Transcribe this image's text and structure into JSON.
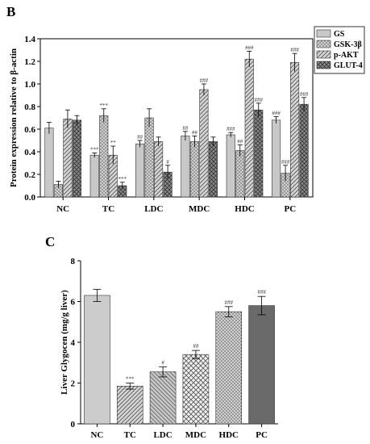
{
  "panels": {
    "b_label": "B",
    "c_label": "C"
  },
  "chart_data": [
    {
      "type": "bar",
      "title": "",
      "xlabel": "",
      "ylabel": "Protein expression relative to β-actin",
      "ylim": [
        0,
        1.4
      ],
      "yticks": [
        "0.0",
        "0.2",
        "0.4",
        "0.6",
        "0.8",
        "1.0",
        "1.2",
        "1.4"
      ],
      "categories": [
        "NC",
        "TC",
        "LDC",
        "MDC",
        "HDC",
        "PC"
      ],
      "legend_position": "top-right",
      "series": [
        {
          "name": "GS",
          "color": "#c8c8c8",
          "pattern": "solid",
          "values": [
            0.61,
            0.37,
            0.47,
            0.54,
            0.55,
            0.68
          ],
          "errors": [
            0.05,
            0.02,
            0.03,
            0.04,
            0.02,
            0.03
          ],
          "annotations": [
            "",
            "***",
            "##",
            "##",
            "###",
            "###"
          ]
        },
        {
          "name": "GSK-3β",
          "color": "#a8a8a8",
          "pattern": "dots",
          "values": [
            0.11,
            0.72,
            0.7,
            0.49,
            0.41,
            0.21
          ],
          "errors": [
            0.03,
            0.06,
            0.08,
            0.05,
            0.05,
            0.07
          ],
          "annotations": [
            "",
            "***",
            "",
            "##",
            "##",
            "###"
          ]
        },
        {
          "name": "p-AKT",
          "color": "#bdbdbd",
          "pattern": "diag",
          "values": [
            0.69,
            0.37,
            0.49,
            0.95,
            1.22,
            1.19
          ],
          "errors": [
            0.08,
            0.08,
            0.04,
            0.05,
            0.07,
            0.08
          ],
          "annotations": [
            "",
            "**",
            "",
            "###",
            "###",
            "###"
          ]
        },
        {
          "name": "GLUT-4",
          "color": "#777777",
          "pattern": "cross",
          "values": [
            0.68,
            0.1,
            0.22,
            0.49,
            0.77,
            0.82
          ],
          "errors": [
            0.04,
            0.03,
            0.06,
            0.04,
            0.06,
            0.06
          ],
          "annotations": [
            "",
            "***",
            "#",
            "",
            "###",
            "###"
          ]
        }
      ]
    },
    {
      "type": "bar",
      "title": "",
      "xlabel": "",
      "ylabel": "Liver Glygocen (mg/g liver)",
      "ylim": [
        0,
        8
      ],
      "yticks": [
        "0",
        "2",
        "4",
        "6",
        "8"
      ],
      "categories": [
        "NC",
        "TC",
        "LDC",
        "MDC",
        "HDC",
        "PC"
      ],
      "values": [
        6.3,
        1.85,
        2.55,
        3.4,
        5.5,
        5.8
      ],
      "errors": [
        0.3,
        0.15,
        0.25,
        0.2,
        0.25,
        0.45
      ],
      "annotations": [
        "",
        "***",
        "#",
        "##",
        "###",
        "###"
      ],
      "colors": [
        "#cccccc",
        "#a0a0a0",
        "#c4c4c4",
        "#e6e6e6",
        "#d2d2d2",
        "#6a6a6a"
      ],
      "patterns": [
        "solid",
        "diag",
        "diag2",
        "cross",
        "dots",
        "solid"
      ]
    }
  ]
}
